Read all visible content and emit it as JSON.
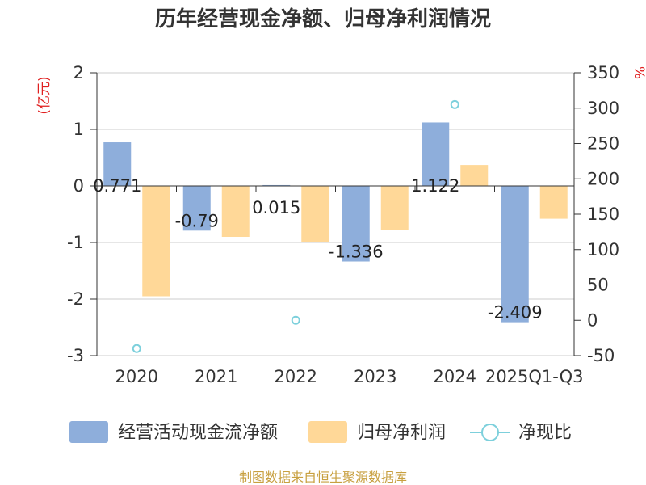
{
  "chart_data": {
    "type": "bar",
    "title": "历年经营现金净额、归母净利润情况",
    "categories": [
      "2020",
      "2021",
      "2022",
      "2023",
      "2024",
      "2025Q1-Q3"
    ],
    "series": [
      {
        "name": "经营活动现金流净额",
        "kind": "bar",
        "axis": "left",
        "color": "#8eaedb",
        "values": [
          0.771,
          -0.79,
          0.015,
          -1.336,
          1.122,
          -2.409
        ],
        "labels": [
          "0.771",
          "-0.79",
          "0.015",
          "-1.336",
          "1.122",
          "-2.409"
        ]
      },
      {
        "name": "归母净利润",
        "kind": "bar",
        "axis": "left",
        "color": "#ffd898",
        "values": [
          -1.95,
          -0.9,
          -1.0,
          -0.78,
          0.37,
          -0.58
        ]
      },
      {
        "name": "净现比",
        "kind": "scatter",
        "axis": "right",
        "color": "#7dd0dc",
        "values": [
          -40,
          null,
          0,
          null,
          305,
          null
        ]
      }
    ],
    "y_left": {
      "unit": "(亿元)",
      "ylim": [
        -3,
        2
      ],
      "ticks": [
        "2",
        "1",
        "0",
        "-1",
        "-2",
        "-3"
      ]
    },
    "y_right": {
      "unit": "%",
      "ylim": [
        -50,
        350
      ],
      "ticks": [
        "350",
        "300",
        "250",
        "200",
        "150",
        "100",
        "50",
        "0",
        "-50"
      ]
    },
    "legend_position": "bottom",
    "source": "制图数据来自恒生聚源数据库"
  }
}
